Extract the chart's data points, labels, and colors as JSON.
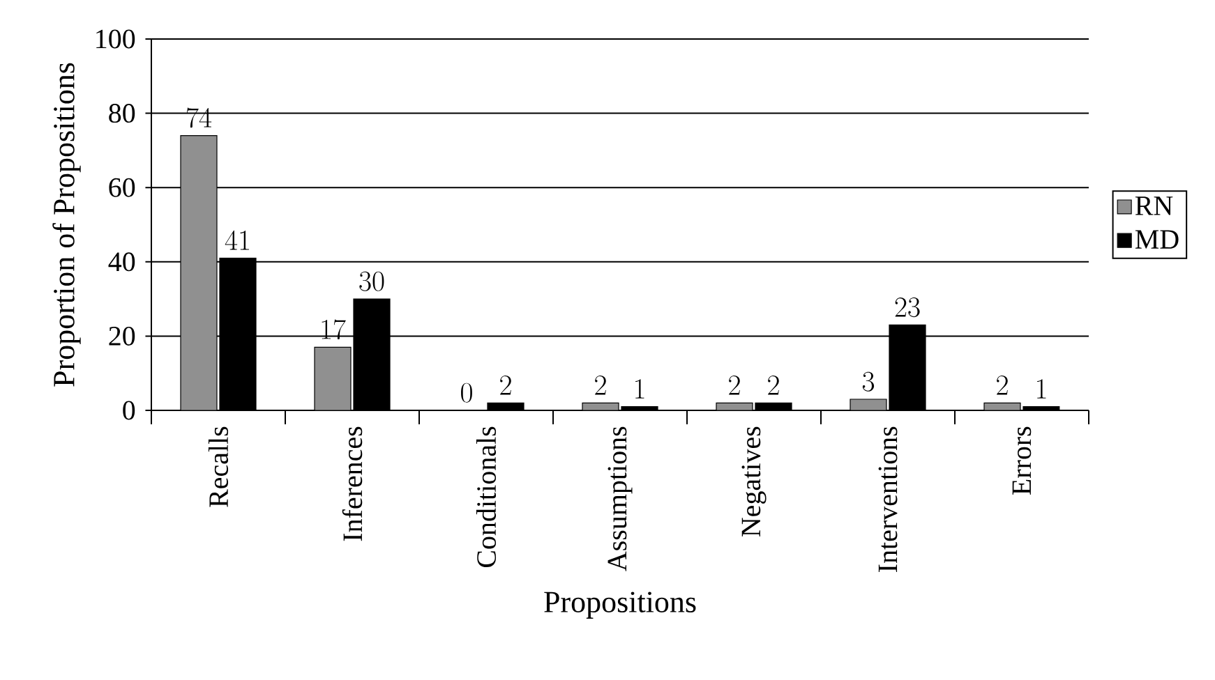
{
  "chart_data": {
    "type": "bar",
    "xlabel": "Propositions",
    "ylabel": "Proportion of Propositions",
    "categories": [
      "Recalls",
      "Inferences",
      "Conditionals",
      "Assumptions",
      "Negatives",
      "Interventions",
      "Errors"
    ],
    "series": [
      {
        "name": "RN",
        "color": "#909090",
        "values": [
          74,
          17,
          0,
          2,
          2,
          3,
          2
        ]
      },
      {
        "name": "MD",
        "color": "#000000",
        "values": [
          41,
          30,
          2,
          1,
          2,
          23,
          1
        ]
      }
    ],
    "ylim": [
      0,
      100
    ],
    "yticks": [
      0,
      20,
      40,
      60,
      80,
      100
    ],
    "grid": "y",
    "legend": "right",
    "data_labels": true
  }
}
